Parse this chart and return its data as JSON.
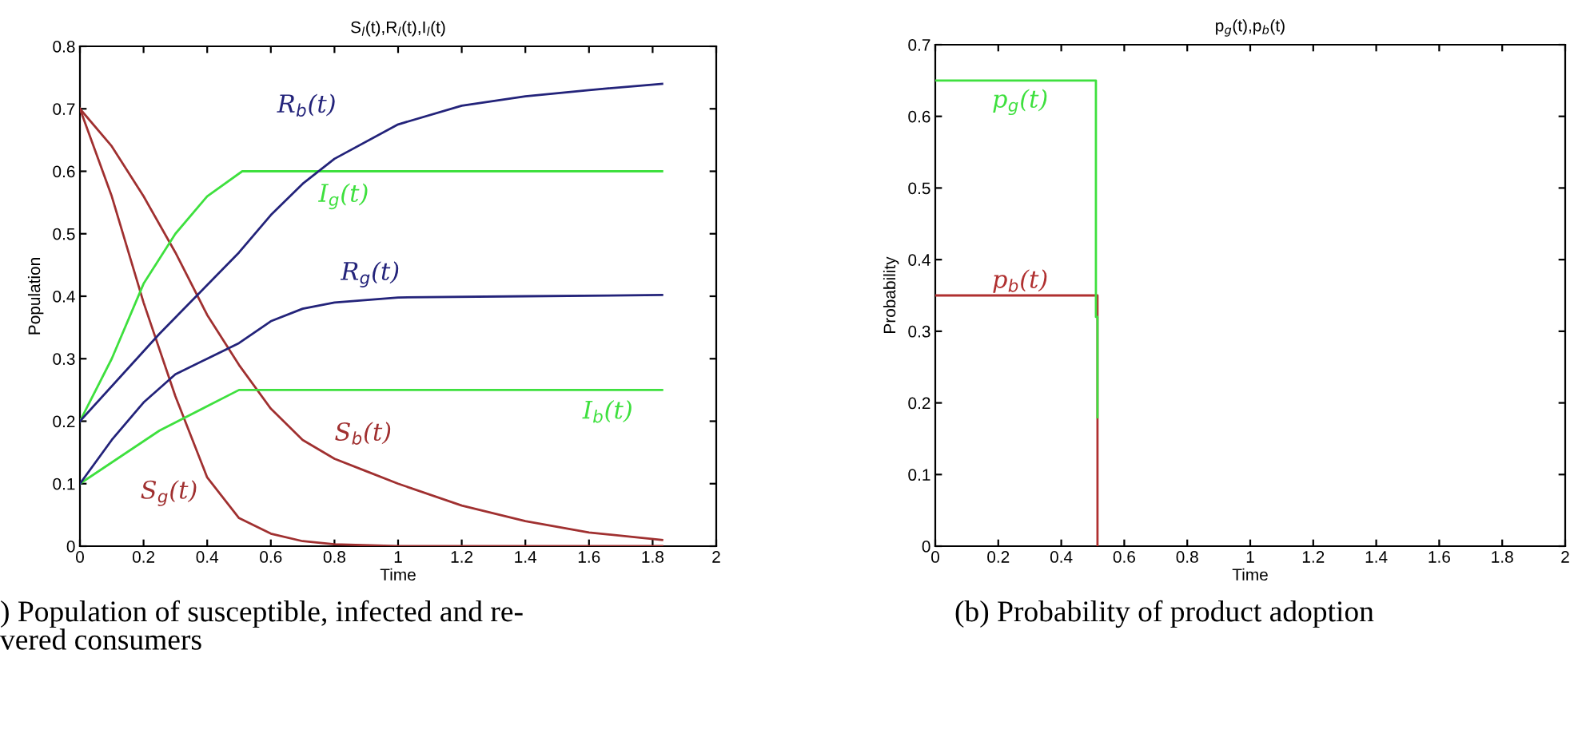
{
  "chart_data": [
    {
      "type": "line",
      "title": "S$_{l}$(t),R$_{l}$(t),I$_{l}$(t)",
      "xlabel": "Time",
      "ylabel": "Population",
      "xlim": [
        0,
        2
      ],
      "xticks": [
        0,
        0.2,
        0.4,
        0.6,
        0.8,
        1,
        1.2,
        1.4,
        1.6,
        1.8,
        2
      ],
      "ylim": [
        0,
        0.8
      ],
      "yticks": [
        0,
        0.1,
        0.2,
        0.3,
        0.4,
        0.5,
        0.6,
        0.7,
        0.8
      ],
      "grid": false,
      "legend": false,
      "marker": "none",
      "line_style": "solid",
      "annotations": [
        ") Population of susceptible, infected and re-\nvered consumers"
      ],
      "series": [
        {
          "name": "R$_{b}$(t)",
          "color": "#23237a",
          "x": [
            0,
            0.25,
            0.5,
            0.6,
            0.7,
            0.8,
            1.0,
            1.2,
            1.4,
            1.6,
            1.83
          ],
          "values": [
            0.2,
            0.34,
            0.47,
            0.53,
            0.58,
            0.62,
            0.675,
            0.705,
            0.72,
            0.73,
            0.74
          ]
        },
        {
          "name": "I$_{g}$(t)",
          "color": "#3ee03e",
          "x": [
            0,
            0.1,
            0.2,
            0.3,
            0.4,
            0.51,
            1.83
          ],
          "values": [
            0.2,
            0.3,
            0.42,
            0.5,
            0.56,
            0.6,
            0.6
          ]
        },
        {
          "name": "R$_{g}$(t)",
          "color": "#23237a",
          "x": [
            0,
            0.1,
            0.2,
            0.3,
            0.4,
            0.5,
            0.6,
            0.7,
            0.8,
            1.0,
            1.4,
            1.83
          ],
          "values": [
            0.1,
            0.17,
            0.23,
            0.275,
            0.3,
            0.325,
            0.36,
            0.38,
            0.39,
            0.398,
            0.4,
            0.402
          ]
        },
        {
          "name": "I$_{b}$(t)",
          "color": "#3ee03e",
          "x": [
            0,
            0.25,
            0.5,
            1.83
          ],
          "values": [
            0.1,
            0.185,
            0.25,
            0.25
          ]
        },
        {
          "name": "S$_{b}$(t)",
          "color": "#a03030",
          "x": [
            0,
            0.1,
            0.2,
            0.3,
            0.4,
            0.5,
            0.6,
            0.7,
            0.8,
            0.9,
            1.0,
            1.2,
            1.4,
            1.6,
            1.83
          ],
          "values": [
            0.7,
            0.64,
            0.56,
            0.47,
            0.37,
            0.29,
            0.22,
            0.17,
            0.14,
            0.12,
            0.1,
            0.065,
            0.04,
            0.022,
            0.01
          ]
        },
        {
          "name": "S$_{g}$(t)",
          "color": "#a03030",
          "x": [
            0,
            0.1,
            0.2,
            0.3,
            0.4,
            0.5,
            0.6,
            0.7,
            0.8,
            1.0,
            1.83
          ],
          "values": [
            0.7,
            0.56,
            0.39,
            0.24,
            0.11,
            0.045,
            0.02,
            0.008,
            0.003,
            0,
            0
          ]
        }
      ]
    },
    {
      "type": "line",
      "title": "p$_{g}$(t),p$_{b}$(t)",
      "xlabel": "Time",
      "ylabel": "Probability",
      "xlim": [
        0,
        2
      ],
      "xticks": [
        0,
        0.2,
        0.4,
        0.6,
        0.8,
        1,
        1.2,
        1.4,
        1.6,
        1.8,
        2
      ],
      "ylim": [
        0,
        0.7
      ],
      "yticks": [
        0,
        0.1,
        0.2,
        0.3,
        0.4,
        0.5,
        0.6,
        0.7
      ],
      "grid": false,
      "legend": false,
      "marker": "none",
      "line_style": "solid",
      "annotations": [
        "(b) Probability of product adoption"
      ],
      "series": [
        {
          "name": "p$_{g}$(t)",
          "color": "#3ee03e",
          "x": [
            0,
            0.51,
            0.51,
            0.515,
            0.515
          ],
          "values": [
            0.65,
            0.65,
            0.32,
            0.32,
            0.18
          ]
        },
        {
          "name": "p$_{b}$(t)",
          "color": "#b03030",
          "x": [
            0,
            0.51,
            0.515,
            0.515
          ],
          "values": [
            0.35,
            0.35,
            0.35,
            0
          ]
        }
      ]
    }
  ]
}
